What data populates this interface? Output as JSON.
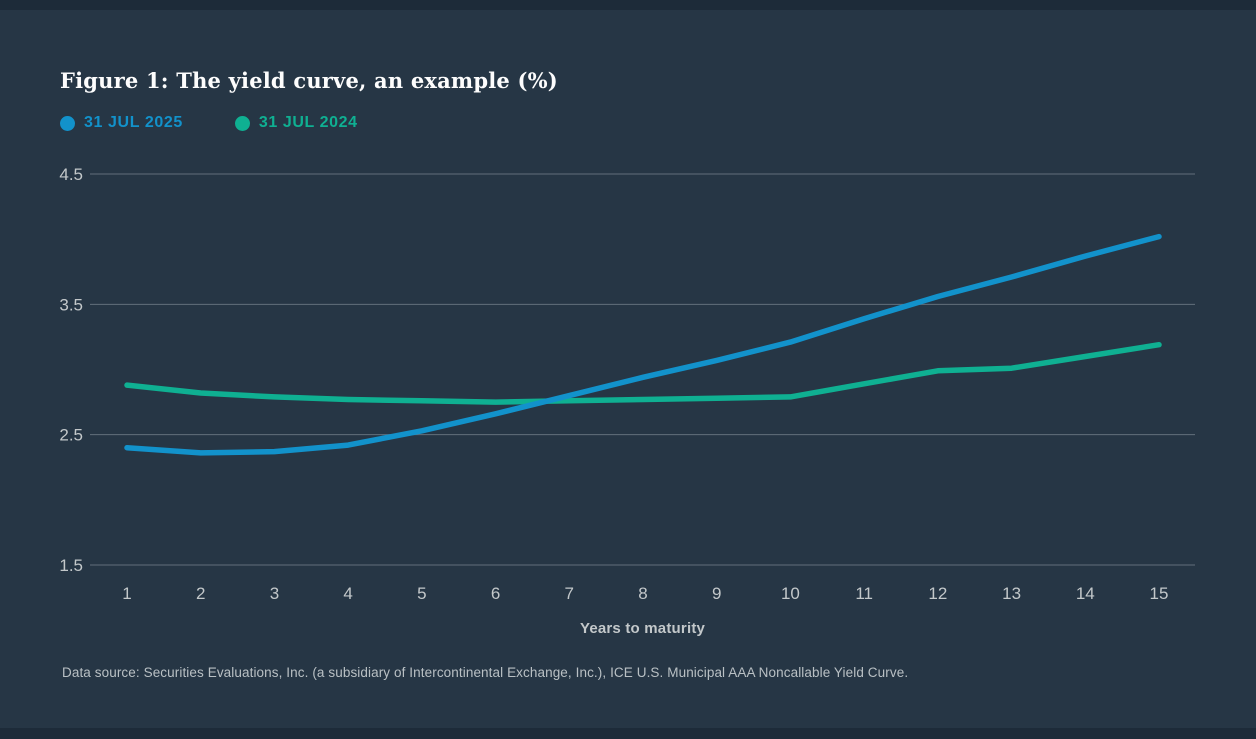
{
  "page": {
    "title": "Figure 1: The yield curve, an example (%)",
    "footer": "Data source: Securities Evaluations, Inc. (a subsidiary of Intercontinental Exchange, Inc.), ICE U.S. Municipal AAA Noncallable Yield Curve."
  },
  "colors": {
    "background": "#263645",
    "edge_band": "#1d2b39",
    "grid_line": "#77828d",
    "tick_label": "#c3c8ca",
    "series_2025_blue": "#1292cb",
    "series_2024_green": "#0fb092"
  },
  "legend": {
    "items": [
      {
        "label": "31 JUL 2025",
        "color": "#1292cb"
      },
      {
        "label": "31 JUL 2024",
        "color": "#0fb092"
      }
    ]
  },
  "chart_data": {
    "type": "line",
    "title": "Figure 1: The yield curve, an example (%)",
    "xlabel": "Years to maturity",
    "ylabel": "",
    "x": [
      1,
      2,
      3,
      4,
      5,
      6,
      7,
      8,
      9,
      10,
      11,
      12,
      13,
      14,
      15
    ],
    "xticks": [
      "1",
      "2",
      "3",
      "4",
      "5",
      "6",
      "7",
      "8",
      "9",
      "10",
      "11",
      "12",
      "13",
      "14",
      "15"
    ],
    "yticks": [
      "4.5",
      "3.5",
      "2.5",
      "1.5"
    ],
    "ylim": [
      1.5,
      4.5
    ],
    "grid": true,
    "legend_position": "top-left",
    "series": [
      {
        "name": "31 JUL 2025",
        "color": "#1292cb",
        "values": [
          2.4,
          2.36,
          2.37,
          2.42,
          2.53,
          2.66,
          2.8,
          2.94,
          3.07,
          3.21,
          3.39,
          3.56,
          3.71,
          3.87,
          4.02
        ]
      },
      {
        "name": "31 JUL 2024",
        "color": "#0fb092",
        "values": [
          2.88,
          2.82,
          2.79,
          2.77,
          2.76,
          2.75,
          2.76,
          2.77,
          2.78,
          2.79,
          2.89,
          2.99,
          3.01,
          3.1,
          3.19
        ]
      }
    ]
  }
}
